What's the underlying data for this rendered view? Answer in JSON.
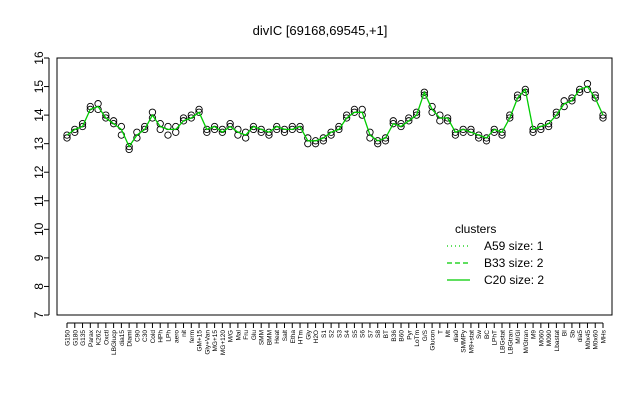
{
  "chart_data": {
    "type": "line",
    "title": "divIC [69168,69545,+1]",
    "xlabel": "",
    "ylabel": "",
    "ylim": [
      7,
      16
    ],
    "yticks": [
      7,
      8,
      9,
      10,
      11,
      12,
      13,
      14,
      15,
      16
    ],
    "grid": false,
    "legend": {
      "title": "clusters",
      "placement": "right",
      "entries": [
        {
          "label": "A59 size: 1",
          "style": "dotted",
          "color": "#00cc00"
        },
        {
          "label": "B33 size: 2",
          "style": "dashed",
          "color": "#00cc00"
        },
        {
          "label": "C20 size: 2",
          "style": "solid",
          "color": "#00cc00"
        }
      ]
    },
    "xtick_labels": [
      "G150",
      "G180",
      "G135",
      "Parax",
      "K262",
      "Oxctl",
      "LBGlucp",
      "dia15",
      "Diami",
      "C90",
      "C30",
      "Cold",
      "HPh",
      "LPh",
      "aero",
      "nit",
      "ferm",
      "GM+15",
      "Gly+Van",
      "MG+15",
      "MG+120",
      "M/G",
      "Mal",
      "Fru",
      "Glu",
      "SMM",
      "BMM",
      "Heat",
      "Salt",
      "Etha",
      "HTm",
      "Gly",
      "H2O",
      "S1",
      "S2",
      "S3",
      "S4",
      "S5",
      "S6",
      "S7",
      "S8",
      "BT",
      "B36",
      "B60",
      "Pyr",
      "LoTm",
      "G/S",
      "Glucon",
      "T",
      "Mt",
      "dia0",
      "SMMPy",
      "M9+stat",
      "Sw",
      "BC",
      "LPhT",
      "LBGstat",
      "LBGtran",
      "M/Gl",
      "M/Gtran",
      "M9",
      "M060",
      "M090",
      "Lbastat",
      "BI",
      "Sb",
      "dia5",
      "M0x45",
      "M0x60",
      "MHs"
    ],
    "data_note": "one column per x tick (70 conditions)",
    "series": [
      {
        "name": "",
        "values": [
          13.3,
          13.5,
          13.7,
          14.2,
          14.2,
          13.9,
          13.8,
          13.6,
          12.9,
          13.4,
          13.5,
          13.9,
          13.7,
          13.6,
          13.4,
          13.8,
          13.9,
          14.1,
          13.5,
          13.6,
          13.4,
          13.6,
          13.5,
          13.4,
          13.6,
          13.5,
          13.4,
          13.6,
          13.5,
          13.5,
          13.6,
          13.2,
          13.1,
          13.1,
          13.3,
          13.5,
          13.9,
          14.1,
          14.2,
          13.4,
          13.1,
          13.2,
          13.7,
          13.6,
          13.8,
          14.0,
          14.7,
          14.3,
          14.0,
          13.9,
          13.4,
          13.5,
          13.4,
          13.3,
          13.2,
          13.5,
          13.4,
          13.9,
          14.6,
          14.8,
          13.5,
          13.6,
          13.7,
          14.0,
          14.3,
          14.5,
          14.8,
          14.9,
          14.6,
          14.0
        ],
        "draw": "points"
      },
      {
        "name": "",
        "values": [
          13.2,
          13.4,
          13.6,
          14.3,
          14.4,
          14.0,
          13.7,
          13.3,
          12.8,
          13.2,
          13.6,
          14.1,
          13.5,
          13.3,
          13.6,
          13.9,
          14.0,
          14.2,
          13.4,
          13.5,
          13.5,
          13.7,
          13.3,
          13.2,
          13.5,
          13.4,
          13.3,
          13.5,
          13.4,
          13.6,
          13.5,
          13.0,
          13.0,
          13.2,
          13.4,
          13.6,
          14.0,
          14.2,
          14.0,
          13.2,
          13.0,
          13.1,
          13.8,
          13.7,
          13.9,
          14.1,
          14.8,
          14.1,
          13.8,
          13.8,
          13.3,
          13.4,
          13.5,
          13.2,
          13.1,
          13.4,
          13.3,
          14.0,
          14.7,
          14.9,
          13.4,
          13.5,
          13.6,
          14.1,
          14.5,
          14.6,
          14.9,
          15.1,
          14.7,
          13.9
        ],
        "draw": "points"
      },
      {
        "name": "",
        "values": [
          13.3,
          13.5,
          13.6,
          14.2,
          14.3,
          13.9,
          13.7,
          13.5,
          12.9,
          13.3,
          13.5,
          14.0,
          13.6,
          13.5,
          13.5,
          13.8,
          13.9,
          14.1,
          13.5,
          13.6,
          13.4,
          13.6,
          13.4,
          13.3,
          13.6,
          13.5,
          13.4,
          13.6,
          13.5,
          13.5,
          13.6,
          13.1,
          13.1,
          13.2,
          13.4,
          13.5,
          13.9,
          14.1,
          14.1,
          13.3,
          13.1,
          13.2,
          13.7,
          13.6,
          13.8,
          14.0,
          14.8,
          14.2,
          13.9,
          13.9,
          13.4,
          13.5,
          13.4,
          13.3,
          13.2,
          13.5,
          13.4,
          13.9,
          14.6,
          14.9,
          13.5,
          13.6,
          13.7,
          14.0,
          14.4,
          14.5,
          14.9,
          15.0,
          14.6,
          14.0
        ],
        "draw": "line"
      }
    ]
  }
}
